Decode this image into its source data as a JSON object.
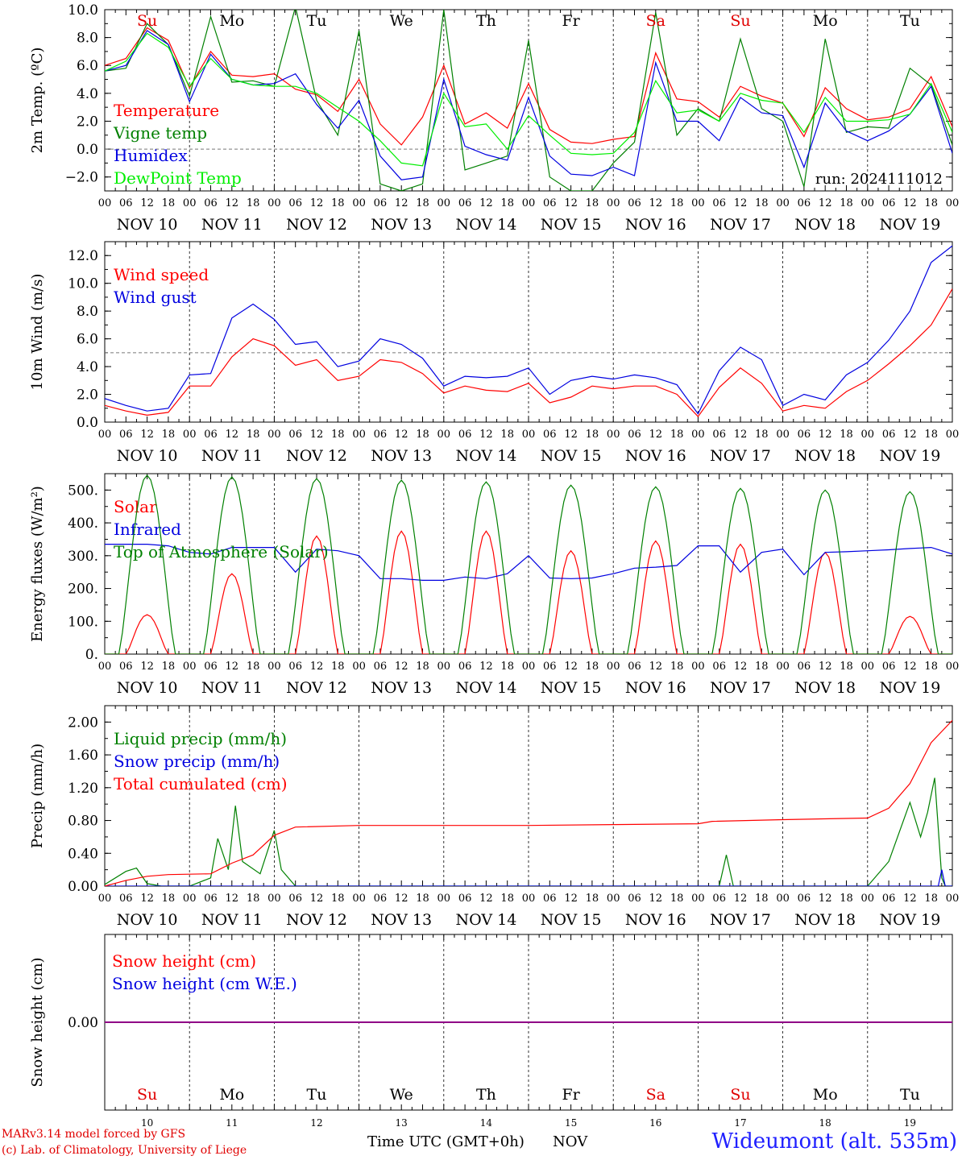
{
  "chart_data": [
    {
      "type": "line",
      "ylabel": "2m Temp. (ºC)",
      "ylim": [
        -3.0,
        10.0
      ],
      "yticks": [
        "−2.0",
        "0.0",
        "2.0",
        "4.0",
        "6.0",
        "8.0",
        "10.0"
      ],
      "ytick_values": [
        -2,
        0,
        2,
        4,
        6,
        8,
        10
      ],
      "dashed_reference": 0.0,
      "run_label": "run: 2024111012",
      "day_names": [
        "Su",
        "Mo",
        "Tu",
        "We",
        "Th",
        "Fr",
        "Sa",
        "Su",
        "Mo",
        "Tu"
      ],
      "day_name_colors": [
        "#e00000",
        "#000000",
        "#000000",
        "#000000",
        "#000000",
        "#000000",
        "#e00000",
        "#e00000",
        "#000000",
        "#000000"
      ],
      "x_unit": "hours since Nov 10 00 UTC",
      "series": [
        {
          "name": "Temperature",
          "color": "#ff0000",
          "x": [
            0,
            6,
            12,
            18,
            24,
            30,
            36,
            42,
            48,
            54,
            60,
            66,
            72,
            78,
            84,
            90,
            96,
            102,
            108,
            114,
            120,
            126,
            132,
            138,
            144,
            150,
            156,
            162,
            168,
            174,
            180,
            186,
            192,
            198,
            204,
            210,
            216,
            222,
            228,
            234,
            240
          ],
          "values": [
            6.0,
            6.5,
            8.7,
            7.8,
            4.4,
            7.0,
            5.3,
            5.2,
            5.4,
            4.3,
            3.9,
            2.7,
            5.0,
            1.8,
            0.3,
            2.3,
            6.0,
            1.8,
            2.6,
            1.5,
            4.7,
            1.4,
            0.5,
            0.4,
            0.7,
            0.9,
            6.9,
            3.6,
            3.4,
            2.3,
            4.5,
            3.8,
            3.3,
            0.9,
            4.4,
            2.9,
            2.1,
            2.3,
            2.9,
            5.2,
            1.6
          ]
        },
        {
          "name": "Vigne temp",
          "color": "#008000",
          "x": [
            0,
            6,
            12,
            18,
            24,
            30,
            36,
            42,
            48,
            54,
            60,
            66,
            72,
            78,
            84,
            90,
            96,
            102,
            108,
            114,
            120,
            126,
            132,
            138,
            144,
            150,
            156,
            162,
            168,
            174,
            180,
            186,
            192,
            198,
            204,
            210,
            216,
            222,
            228,
            234,
            240
          ],
          "values": [
            5.6,
            5.8,
            9.0,
            7.5,
            3.8,
            9.5,
            4.8,
            4.9,
            4.5,
            10.2,
            3.5,
            1.0,
            8.5,
            -2.5,
            -3.0,
            -2.5,
            10.0,
            -1.5,
            -1.0,
            -0.5,
            7.8,
            -2.0,
            -3.0,
            -3.0,
            -1.0,
            0.5,
            9.8,
            1.0,
            2.9,
            2.0,
            7.9,
            2.9,
            2.0,
            -2.7,
            7.9,
            1.2,
            1.6,
            1.5,
            5.8,
            4.6,
            0.3
          ]
        },
        {
          "name": "Humidex",
          "color": "#0000e0",
          "x": [
            0,
            6,
            12,
            18,
            24,
            30,
            36,
            42,
            48,
            54,
            60,
            66,
            72,
            78,
            84,
            90,
            96,
            102,
            108,
            114,
            120,
            126,
            132,
            138,
            144,
            150,
            156,
            162,
            168,
            174,
            180,
            186,
            192,
            198,
            204,
            210,
            216,
            222,
            228,
            234,
            240
          ],
          "values": [
            5.6,
            6.0,
            8.5,
            7.5,
            3.4,
            6.8,
            5.0,
            4.6,
            4.7,
            5.4,
            3.2,
            1.5,
            3.5,
            -0.5,
            -2.2,
            -2.0,
            5.0,
            0.2,
            -0.4,
            -0.8,
            3.7,
            -0.5,
            -1.8,
            -1.9,
            -1.3,
            -1.9,
            6.2,
            2.0,
            2.0,
            0.6,
            3.7,
            2.6,
            2.4,
            -1.3,
            3.3,
            1.3,
            0.6,
            1.3,
            2.5,
            4.5,
            -0.3
          ]
        },
        {
          "name": "DewPoint Temp",
          "color": "#00ee00",
          "x": [
            0,
            6,
            12,
            18,
            24,
            30,
            36,
            42,
            48,
            54,
            60,
            66,
            72,
            78,
            84,
            90,
            96,
            102,
            108,
            114,
            120,
            126,
            132,
            138,
            144,
            150,
            156,
            162,
            168,
            174,
            180,
            186,
            192,
            198,
            204,
            210,
            216,
            222,
            228,
            234,
            240
          ],
          "values": [
            5.6,
            6.3,
            8.3,
            7.3,
            4.5,
            6.5,
            5.0,
            4.6,
            4.5,
            4.5,
            4.0,
            3.0,
            2.0,
            0.6,
            -1.0,
            -1.2,
            4.0,
            1.6,
            1.8,
            0.0,
            2.4,
            1.0,
            -0.3,
            -0.4,
            -0.3,
            1.2,
            4.9,
            2.6,
            2.8,
            2.0,
            4.0,
            3.5,
            3.3,
            1.2,
            3.7,
            2.0,
            2.0,
            2.1,
            2.5,
            4.7,
            1.2
          ]
        }
      ]
    },
    {
      "type": "line",
      "ylabel": "10m Wind (m/s)",
      "ylim": [
        0.0,
        13.0
      ],
      "yticks": [
        "0.0",
        "2.0",
        "4.0",
        "6.0",
        "8.0",
        "10.0",
        "12.0"
      ],
      "ytick_values": [
        0,
        2,
        4,
        6,
        8,
        10,
        12
      ],
      "dashed_reference": 5.0,
      "series": [
        {
          "name": "Wind speed",
          "color": "#ff0000",
          "x": [
            0,
            6,
            12,
            18,
            24,
            30,
            36,
            42,
            48,
            54,
            60,
            66,
            72,
            78,
            84,
            90,
            96,
            102,
            108,
            114,
            120,
            126,
            132,
            138,
            144,
            150,
            156,
            162,
            168,
            174,
            180,
            186,
            192,
            198,
            204,
            210,
            216,
            222,
            228,
            234,
            240
          ],
          "values": [
            1.2,
            0.8,
            0.5,
            0.7,
            2.6,
            2.6,
            4.7,
            6.0,
            5.5,
            4.1,
            4.5,
            3.0,
            3.3,
            4.5,
            4.3,
            3.5,
            2.1,
            2.6,
            2.3,
            2.2,
            2.8,
            1.4,
            1.8,
            2.6,
            2.4,
            2.6,
            2.6,
            2.0,
            0.4,
            2.5,
            3.9,
            2.8,
            0.8,
            1.2,
            1.0,
            2.2,
            3.0,
            4.2,
            5.5,
            7.0,
            9.6
          ]
        },
        {
          "name": "Wind gust",
          "color": "#0000e0",
          "x": [
            0,
            6,
            12,
            18,
            24,
            30,
            36,
            42,
            48,
            54,
            60,
            66,
            72,
            78,
            84,
            90,
            96,
            102,
            108,
            114,
            120,
            126,
            132,
            138,
            144,
            150,
            156,
            162,
            168,
            174,
            180,
            186,
            192,
            198,
            204,
            210,
            216,
            222,
            228,
            234,
            240
          ],
          "values": [
            1.7,
            1.2,
            0.8,
            1.0,
            3.4,
            3.5,
            7.5,
            8.5,
            7.4,
            5.6,
            5.8,
            4.0,
            4.4,
            6.0,
            5.6,
            4.6,
            2.6,
            3.3,
            3.2,
            3.3,
            3.9,
            2.0,
            3.0,
            3.3,
            3.1,
            3.4,
            3.2,
            2.7,
            0.6,
            3.7,
            5.4,
            4.5,
            1.2,
            2.0,
            1.6,
            3.4,
            4.3,
            5.9,
            8.0,
            11.5,
            12.7
          ]
        }
      ]
    },
    {
      "type": "line",
      "ylabel": "Energy fluxes (W/m²)",
      "ylim": [
        0,
        550
      ],
      "yticks": [
        "0.",
        "100.",
        "200.",
        "300.",
        "400.",
        "500."
      ],
      "ytick_values": [
        0,
        100,
        200,
        300,
        400,
        500
      ],
      "series": [
        {
          "name": "Solar",
          "color": "#ff0000",
          "peak_hour_of_day": 12,
          "half_width_hours": 6,
          "daily_peaks": [
            120,
            245,
            360,
            375,
            375,
            315,
            345,
            335,
            310,
            115
          ]
        },
        {
          "name": "Infrared",
          "color": "#0000e0",
          "x": [
            0,
            6,
            12,
            18,
            24,
            30,
            36,
            42,
            48,
            54,
            60,
            66,
            72,
            78,
            84,
            90,
            96,
            102,
            108,
            114,
            120,
            126,
            132,
            138,
            144,
            150,
            156,
            162,
            168,
            174,
            180,
            186,
            192,
            198,
            204,
            210,
            216,
            222,
            228,
            234,
            240
          ],
          "values": [
            335,
            335,
            335,
            330,
            310,
            305,
            325,
            325,
            325,
            250,
            320,
            315,
            300,
            230,
            230,
            225,
            225,
            235,
            230,
            245,
            300,
            232,
            230,
            232,
            245,
            262,
            265,
            270,
            330,
            330,
            250,
            310,
            320,
            242,
            310,
            312,
            315,
            318,
            322,
            325,
            305
          ]
        },
        {
          "name": "Top of Atmosphere (Solar)",
          "color": "#008000",
          "peak_hour_of_day": 12,
          "half_width_hours": 8,
          "daily_peaks": [
            545,
            540,
            535,
            530,
            525,
            515,
            510,
            505,
            500,
            495
          ]
        }
      ]
    },
    {
      "type": "line",
      "ylabel": "Precip (mm/h)",
      "ylim": [
        0.0,
        2.2
      ],
      "yticks": [
        "0.00",
        "0.40",
        "0.80",
        "1.20",
        "1.60",
        "2.00"
      ],
      "ytick_values": [
        0,
        0.4,
        0.8,
        1.2,
        1.6,
        2.0
      ],
      "series": [
        {
          "name": "Liquid precip (mm/h)",
          "color": "#008000",
          "x": [
            0,
            6,
            9,
            12,
            16,
            24,
            30,
            32,
            35,
            37,
            39,
            44,
            48,
            50,
            54,
            60,
            150,
            174,
            176,
            178,
            216,
            222,
            228,
            231,
            233,
            235,
            237,
            238,
            240
          ],
          "values": [
            0.02,
            0.18,
            0.22,
            0.03,
            0.0,
            0.0,
            0.1,
            0.58,
            0.2,
            0.98,
            0.3,
            0.15,
            0.68,
            0.2,
            0.0,
            0.0,
            0.0,
            0.0,
            0.38,
            0.0,
            0.0,
            0.3,
            1.02,
            0.6,
            0.9,
            1.32,
            0.1,
            0.0,
            0.0
          ]
        },
        {
          "name": "Snow precip (mm/h)",
          "color": "#0000e0",
          "x": [
            0,
            236,
            237,
            238,
            240
          ],
          "values": [
            0.0,
            0.0,
            0.2,
            0.0,
            0.0
          ]
        },
        {
          "name": "Total cumulated (cm)",
          "color": "#ff0000",
          "x": [
            0,
            6,
            12,
            18,
            30,
            36,
            42,
            48,
            54,
            72,
            96,
            120,
            144,
            168,
            172,
            192,
            216,
            222,
            228,
            234,
            240
          ],
          "values": [
            0.0,
            0.07,
            0.12,
            0.14,
            0.15,
            0.28,
            0.38,
            0.62,
            0.72,
            0.74,
            0.74,
            0.74,
            0.75,
            0.76,
            0.79,
            0.81,
            0.83,
            0.95,
            1.25,
            1.75,
            2.02
          ]
        }
      ]
    },
    {
      "type": "line",
      "ylabel": "Snow height (cm)",
      "ylim": [
        -1.0,
        1.0
      ],
      "yticks": [
        "0.00"
      ],
      "ytick_values": [
        0
      ],
      "series": [
        {
          "name": "Snow height (cm)",
          "color": "#ff0000",
          "x": [
            0,
            240
          ],
          "values": [
            0.0,
            0.0
          ]
        },
        {
          "name": "Snow height (cm W.E.)",
          "color": "#0000e0",
          "x": [
            0,
            240
          ],
          "values": [
            0.0,
            0.0
          ]
        }
      ],
      "day_names": [
        "Su",
        "Mo",
        "Tu",
        "We",
        "Th",
        "Fr",
        "Sa",
        "Su",
        "Mo",
        "Tu"
      ],
      "day_name_colors": [
        "#e00000",
        "#000000",
        "#000000",
        "#000000",
        "#000000",
        "#000000",
        "#e00000",
        "#e00000",
        "#000000",
        "#000000"
      ],
      "day_numbers": [
        "10",
        "11",
        "12",
        "13",
        "14",
        "15",
        "16",
        "17",
        "18",
        "19"
      ]
    }
  ],
  "x_axis": {
    "hour_labels": [
      "00",
      "06",
      "12",
      "18"
    ],
    "final_hour_label": "00",
    "date_labels": [
      "NOV 10",
      "NOV 11",
      "NOV 12",
      "NOV 13",
      "NOV 14",
      "NOV 15",
      "NOV 16",
      "NOV 17",
      "NOV 18",
      "NOV 19"
    ],
    "title": "Time UTC (GMT+0h)",
    "month": "NOV"
  },
  "footer": {
    "credit_line1": "MARv3.14 model forced by GFS",
    "credit_line2": "(c) Lab. of Climatology, University of Liege",
    "station": "Wideumont (alt. 535m)"
  }
}
